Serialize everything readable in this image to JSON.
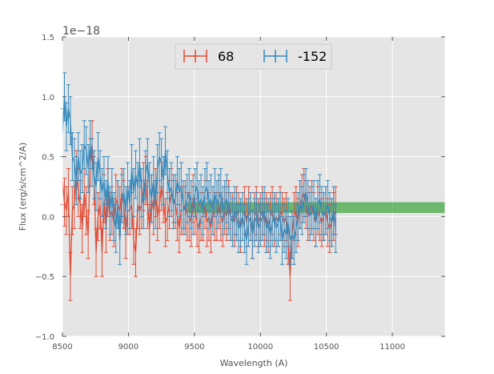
{
  "chart_data": {
    "type": "line",
    "title": "",
    "xlabel": "Wavelength (A)",
    "ylabel": "Flux (erg/s/cm^2/A)",
    "offset_label": "1e−18",
    "xlim": [
      8500,
      11400
    ],
    "ylim": [
      -1.0,
      1.5
    ],
    "xticks": [
      8500,
      9000,
      9500,
      10000,
      10500,
      11000
    ],
    "yticks": [
      -1.0,
      -0.5,
      0.0,
      0.5,
      1.0,
      1.5
    ],
    "xtick_labels": [
      "8500",
      "9000",
      "9500",
      "10000",
      "10500",
      "11000"
    ],
    "ytick_labels": [
      "−1.0",
      "−0.5",
      "0.0",
      "0.5",
      "1.0",
      "1.5"
    ],
    "grid": true,
    "legend_position": "top-center",
    "band": {
      "x_start": 9450,
      "x_end": 11400,
      "y_low": 0.03,
      "y_high": 0.12,
      "color": "#2ca02c"
    },
    "series": [
      {
        "name": "68",
        "color": "#E24A33",
        "x_start": 8500,
        "x_step": 15,
        "err": 0.2,
        "values": [
          0.3,
          0.12,
          0.05,
          0.2,
          -0.5,
          0.05,
          0.1,
          0.35,
          0.2,
          0.1,
          -0.1,
          0.2,
          0.05,
          -0.15,
          0.45,
          0.6,
          0.3,
          -0.3,
          0.0,
          0.1,
          -0.3,
          0.15,
          -0.1,
          0.2,
          0.0,
          0.05,
          -0.05,
          0.15,
          0.1,
          0.05,
          0.2,
          0.1,
          -0.15,
          0.05,
          0.05,
          0.1,
          -0.2,
          -0.3,
          0.1,
          0.05,
          0.1,
          0.25,
          0.3,
          0.1,
          -0.1,
          0.15,
          0.05,
          0.2,
          0.0,
          0.1,
          0.25,
          0.15,
          -0.05,
          0.0,
          0.1,
          0.2,
          0.15,
          0.1,
          0.0,
          -0.1,
          0.05,
          0.05,
          0.1,
          0.0,
          0.0,
          -0.05,
          0.15,
          0.05,
          -0.05,
          -0.1,
          0.0,
          0.0,
          0.1,
          -0.05,
          0.0,
          -0.1,
          0.05,
          0.0,
          0.0,
          0.1,
          0.0,
          -0.05,
          0.05,
          0.0,
          0.1,
          0.0,
          0.0,
          -0.05,
          0.05,
          0.0,
          -0.1,
          0.0,
          0.05,
          -0.05,
          0.05,
          0.0,
          -0.15,
          0.0,
          0.05,
          -0.05,
          0.0,
          0.05,
          -0.05,
          0.0,
          -0.1,
          0.0,
          0.05,
          -0.05,
          0.0,
          -0.05,
          0.05,
          0.0,
          -0.05,
          0.0,
          -0.2,
          -0.5,
          -0.15,
          0.0,
          0.05,
          -0.05,
          0.1,
          0.15,
          0.2,
          0.1,
          0.0,
          0.05,
          0.1,
          0.0,
          -0.05,
          0.05,
          0.0,
          -0.05,
          0.0,
          0.05,
          -0.05,
          -0.1,
          -0.05,
          0.0,
          0.05
        ]
      },
      {
        "name": "-152",
        "color": "#348ABD",
        "x_start": 8500,
        "x_step": 15,
        "err": 0.2,
        "values": [
          0.7,
          1.0,
          0.75,
          0.9,
          0.8,
          0.5,
          0.45,
          0.3,
          0.5,
          0.35,
          0.4,
          0.6,
          0.55,
          0.4,
          0.6,
          0.45,
          0.35,
          0.25,
          0.5,
          0.35,
          0.2,
          0.3,
          0.1,
          0.3,
          0.05,
          0.2,
          0.0,
          -0.1,
          0.1,
          -0.2,
          0.15,
          0.2,
          0.05,
          0.25,
          0.1,
          0.4,
          0.2,
          0.35,
          0.25,
          0.45,
          0.2,
          0.1,
          0.35,
          0.45,
          0.25,
          0.15,
          0.3,
          0.1,
          0.4,
          0.5,
          0.45,
          0.3,
          0.55,
          0.35,
          0.2,
          0.25,
          0.1,
          0.15,
          0.3,
          0.2,
          0.25,
          0.1,
          0.05,
          0.15,
          0.2,
          0.1,
          0.05,
          0.2,
          0.25,
          0.1,
          0.15,
          0.05,
          0.2,
          0.25,
          0.1,
          0.15,
          0.05,
          0.2,
          0.1,
          0.15,
          0.2,
          0.05,
          0.1,
          0.15,
          0.05,
          0.0,
          -0.05,
          0.05,
          0.0,
          -0.1,
          -0.05,
          0.0,
          -0.1,
          -0.2,
          -0.05,
          0.0,
          -0.15,
          -0.05,
          0.0,
          -0.1,
          -0.05,
          0.0,
          0.05,
          -0.1,
          -0.05,
          -0.15,
          -0.05,
          0.0,
          -0.1,
          -0.05,
          0.0,
          -0.2,
          -0.1,
          -0.15,
          -0.05,
          -0.2,
          -0.15,
          -0.2,
          -0.1,
          0.0,
          0.1,
          0.05,
          0.15,
          0.2,
          0.1,
          0.0,
          0.05,
          0.1,
          -0.05,
          0.1,
          0.15,
          0.05,
          0.0,
          0.05,
          0.1,
          0.0,
          -0.05,
          0.05,
          -0.1
        ]
      }
    ]
  }
}
